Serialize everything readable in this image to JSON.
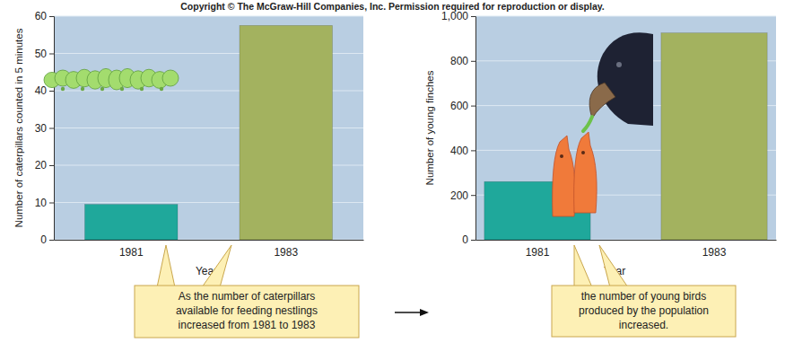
{
  "copyright": "Copyright © The McGraw-Hill Companies, Inc. Permission required for reproduction or display.",
  "chart_data": [
    {
      "type": "bar",
      "categories": [
        "1981",
        "1983"
      ],
      "values": [
        9.5,
        57.5
      ],
      "colors": [
        "#1fa89b",
        "#a3b25f"
      ],
      "xlabel": "Year",
      "ylabel": "Number of caterpillars counted in 5 minutes",
      "ylim": [
        0,
        60
      ],
      "yticks": [
        0,
        10,
        20,
        30,
        40,
        50,
        60
      ],
      "grid": true,
      "annotation": [
        "As the number of caterpillars",
        "available for feeding nestlings",
        "increased from 1981 to 1983"
      ]
    },
    {
      "type": "bar",
      "categories": [
        "1981",
        "1983"
      ],
      "values": [
        260,
        925
      ],
      "colors": [
        "#1fa89b",
        "#a3b25f"
      ],
      "xlabel": "Year",
      "ylabel": "Number of young finches",
      "ylim": [
        0,
        1000
      ],
      "yticks": [
        0,
        200,
        400,
        600,
        800,
        {
          "value": 1000,
          "label": "1,000"
        }
      ],
      "grid": true,
      "annotation": [
        "the number of young birds",
        "produced by the population",
        "increased."
      ]
    }
  ]
}
